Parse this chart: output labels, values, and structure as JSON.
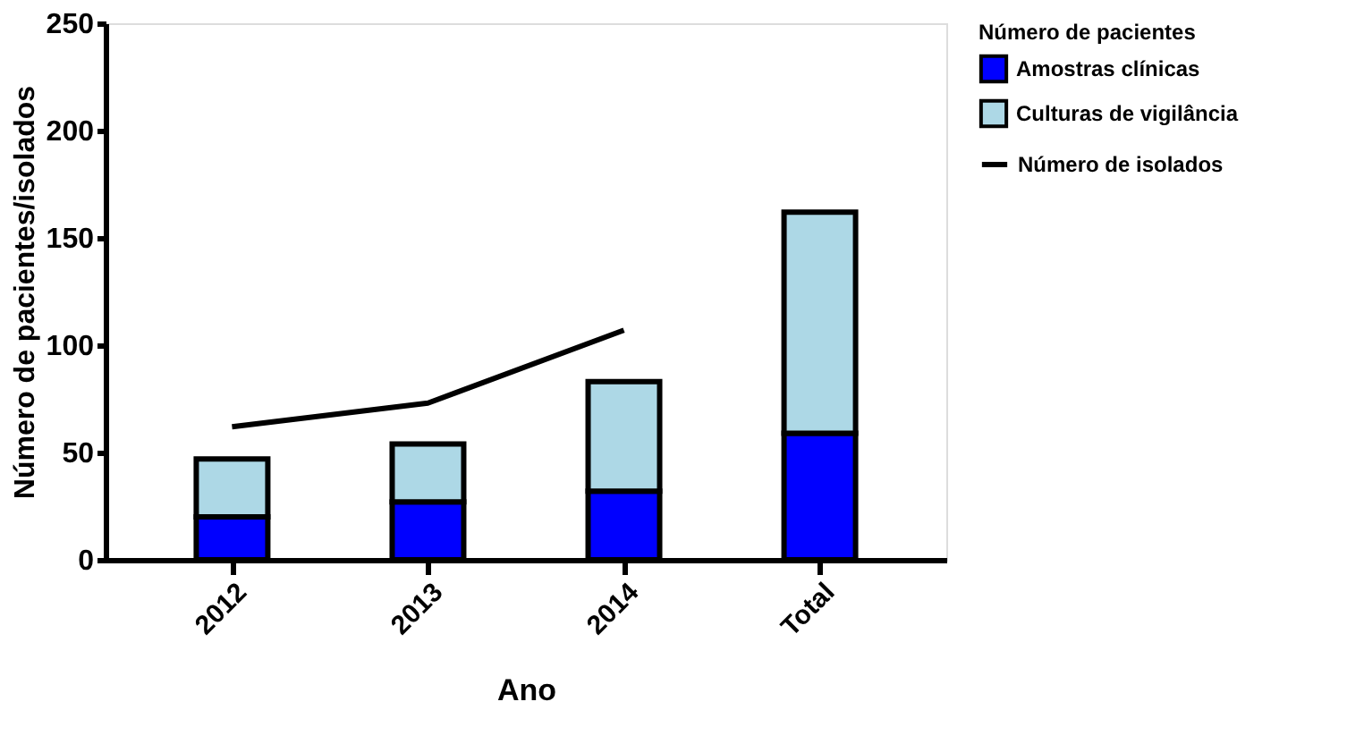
{
  "chart_data": {
    "type": "bar",
    "stacked": true,
    "xlabel": "Ano",
    "ylabel": "Número de pacientes/isolados",
    "legend_title": "Número de pacientes",
    "categories": [
      "2012",
      "2013",
      "2014",
      "Total"
    ],
    "series": [
      {
        "name": "Amostras  clínicas",
        "color": "#0000ff",
        "values": [
          20,
          27,
          32,
          59
        ]
      },
      {
        "name": "Culturas de vigilância",
        "color": "#add8e6",
        "values": [
          27,
          27,
          51,
          103
        ]
      },
      {
        "name": "Número de isolados",
        "type": "line",
        "color": "#000000",
        "values": [
          62,
          73,
          107,
          null
        ]
      }
    ],
    "ylim": [
      0,
      250
    ],
    "yticks": [
      0,
      50,
      100,
      150,
      200,
      250
    ],
    "grid": false,
    "legend": "right"
  }
}
